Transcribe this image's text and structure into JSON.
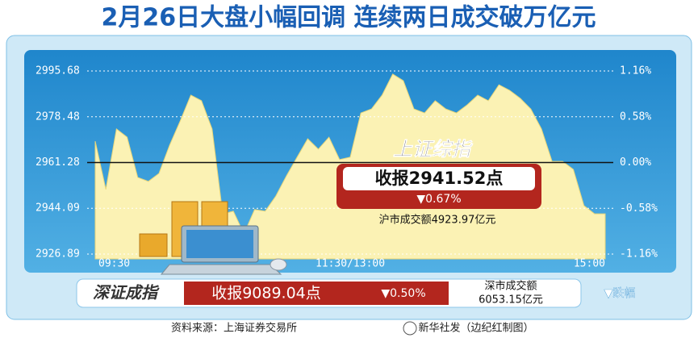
{
  "chart_data": {
    "type": "area",
    "title": "2月26日大盘小幅回调  连续两日成交破万亿元",
    "categories": [
      "09:30",
      null,
      null,
      null,
      null,
      null,
      null,
      null,
      null,
      null,
      null,
      null,
      null,
      null,
      null,
      null,
      null,
      null,
      null,
      null,
      null,
      null,
      null,
      null,
      "11:30/13:00",
      null,
      null,
      null,
      null,
      null,
      null,
      null,
      null,
      null,
      null,
      null,
      null,
      null,
      null,
      null,
      null,
      null,
      null,
      null,
      null,
      null,
      null,
      null,
      "15:00"
    ],
    "values": [
      2969.3,
      2951.2,
      2973.9,
      2970.8,
      2955.7,
      2954.2,
      2957.2,
      2967.8,
      2976.9,
      2986.6,
      2984.5,
      2973.9,
      2942.0,
      2943.0,
      2934.5,
      2943.6,
      2943.0,
      2948.7,
      2956.3,
      2963.3,
      2970.2,
      2966.3,
      2970.8,
      2962.4,
      2963.3,
      2979.9,
      2981.4,
      2986.6,
      2994.5,
      2992.0,
      2981.4,
      2979.9,
      2984.5,
      2981.4,
      2979.9,
      2982.9,
      2986.6,
      2984.5,
      2990.5,
      2988.4,
      2985.4,
      2981.4,
      2973.9,
      2961.7,
      2961.7,
      2958.7,
      2945.1,
      2942.0,
      2942.0
    ],
    "color": "#fbf2b4",
    "ylim": [
      2926.89,
      2995.68
    ],
    "yticks": [
      {
        "value": 2926.89,
        "label": "2926.89"
      },
      {
        "value": 2944.09,
        "label": "2944.09"
      },
      {
        "value": 2961.28,
        "label": "2961.28"
      },
      {
        "value": 2978.48,
        "label": "2978.48"
      },
      {
        "value": 2995.68,
        "label": "2995.68"
      }
    ],
    "y2lim": [
      -1.16,
      1.16
    ],
    "y2ticks": [
      {
        "value": -1.16,
        "label": "-1.16%"
      },
      {
        "value": -0.58,
        "label": "-0.58%"
      },
      {
        "value": 0,
        "label": "0.00%"
      },
      {
        "value": 0.58,
        "label": "0.58%"
      },
      {
        "value": 1.16,
        "label": "1.16%"
      }
    ],
    "grid": true,
    "annotations": {
      "index_name": "上证综指",
      "close": "收报2941.52点",
      "change": "▼0.67%",
      "turnover": "沪市成交额4923.97亿元"
    }
  },
  "shenzhen": {
    "name": "深证成指",
    "close": "收报9089.04点",
    "change": "▼0.50%",
    "turnover_label": "深市成交额",
    "turnover": "6053.15亿元"
  },
  "legend": "▼跌幅",
  "footer": {
    "source": "资料来源：上海证券交易所",
    "credit": "新华社发（边纪红制图）"
  }
}
